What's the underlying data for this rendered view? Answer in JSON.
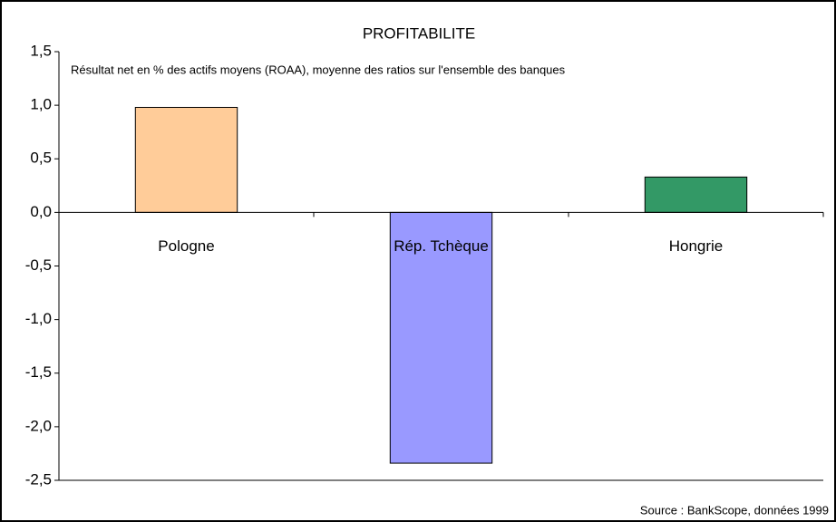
{
  "chart_data": {
    "type": "bar",
    "title": "PROFITABILITE",
    "subtitle": "Résultat net en % des actifs moyens (ROAA), moyenne des ratios sur l'ensemble des banques",
    "source": "Source : BankScope, données 1999",
    "categories": [
      "Pologne",
      "Rép. Tchèque",
      "Hongrie"
    ],
    "values": [
      0.98,
      -2.34,
      0.33
    ],
    "colors": [
      "#ffcc99",
      "#9999ff",
      "#339966"
    ],
    "ylim": [
      -2.5,
      1.5
    ],
    "yticks": [
      {
        "value": -2.5,
        "label": "-2,5"
      },
      {
        "value": -2,
        "label": "-2,0"
      },
      {
        "value": -1.5,
        "label": "-1,5"
      },
      {
        "value": -1,
        "label": "-1,0"
      },
      {
        "value": -0.5,
        "label": "-0,5"
      },
      {
        "value": 0,
        "label": "0,0"
      },
      {
        "value": 0.5,
        "label": "0,5"
      },
      {
        "value": 1,
        "label": "1,0"
      },
      {
        "value": 1.5,
        "label": "1,5"
      }
    ]
  }
}
